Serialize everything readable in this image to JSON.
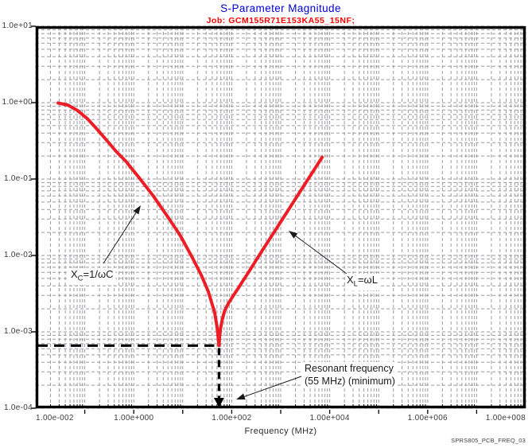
{
  "title": "S-Parameter Magnitude",
  "job": "Job: GCM155R71E153KA55_15NF;",
  "watermark": "SPRS805_PCB_FREQ_03",
  "colors": {
    "title": "#0000cd",
    "job": "#ff0000",
    "curve": "#ee1c25",
    "grid": "#9a9aa0",
    "axis": "#000000",
    "guide": "#000000"
  },
  "chart_data": {
    "type": "line",
    "title": "S-Parameter Magnitude",
    "subtitle": "Job: GCM155R71E153KA55_15NF;",
    "xlabel": "Frequency (MHz)",
    "ylabel": "",
    "x_scale": "log",
    "y_scale": "log",
    "xlim": [
      0.01,
      100000000
    ],
    "ylim": [
      0.0001,
      10
    ],
    "grid": "dashed-log-minor",
    "x_ticks": [
      {
        "label": "1.00e-002",
        "decade": -2
      },
      {
        "label": "1.00e+000",
        "decade": 0
      },
      {
        "label": "1.00e+002",
        "decade": 2
      },
      {
        "label": "1.00e+004",
        "decade": 4
      },
      {
        "label": "1.00e+006",
        "decade": 6
      },
      {
        "label": "1.00e+008",
        "decade": 8
      }
    ],
    "y_ticks": [
      {
        "label": "1.0e+01",
        "decade": 1
      },
      {
        "label": "1.0e+00",
        "decade": 0
      },
      {
        "label": "1.0e-01",
        "decade": -1
      },
      {
        "label": "1.0e-02",
        "decade": -2
      },
      {
        "label": "1.0e-03",
        "decade": -3
      },
      {
        "label": "1.0e-04",
        "decade": -4
      }
    ],
    "series": [
      {
        "name": "s-parameter-magnitude",
        "color": "#ee1c25",
        "points": [
          [
            0.0285,
            0.99
          ],
          [
            0.045,
            0.93
          ],
          [
            0.071,
            0.79
          ],
          [
            0.112,
            0.62
          ],
          [
            0.178,
            0.45
          ],
          [
            0.282,
            0.32
          ],
          [
            0.447,
            0.226
          ],
          [
            0.708,
            0.168
          ],
          [
            0.824,
            0.148
          ],
          [
            1.26,
            0.106
          ],
          [
            2.51,
            0.06
          ],
          [
            5.01,
            0.0316
          ],
          [
            8.91,
            0.0182
          ],
          [
            15.8,
            0.0093
          ],
          [
            24.0,
            0.0055
          ],
          [
            33.1,
            0.0034
          ],
          [
            44.7,
            0.0018
          ],
          [
            50.1,
            0.00117
          ],
          [
            55,
            0.00066
          ],
          [
            56.5,
            0.00085
          ],
          [
            59,
            0.0011
          ],
          [
            64,
            0.00145
          ],
          [
            72,
            0.0019
          ],
          [
            85,
            0.00235
          ],
          [
            105,
            0.0029
          ],
          [
            135,
            0.0037
          ],
          [
            175,
            0.0048
          ],
          [
            230,
            0.0063
          ],
          [
            320,
            0.0088
          ],
          [
            450,
            0.0124
          ],
          [
            650,
            0.0179
          ],
          [
            950,
            0.0261
          ],
          [
            1400,
            0.0385
          ],
          [
            2100,
            0.0578
          ],
          [
            3200,
            0.088
          ],
          [
            4800,
            0.132
          ],
          [
            7000,
            0.193
          ]
        ]
      }
    ],
    "resonance": {
      "freq_mhz": 55,
      "magnitude": 0.00066,
      "label_line1": "Resonant frequency",
      "label_line2": "(55 MHz) (minimum)"
    },
    "annotations": {
      "xc": {
        "base": "X",
        "sub": "C",
        "rest": "=1/ωC"
      },
      "xl": {
        "base": "X",
        "sub": "L",
        "rest": "=ωL"
      }
    }
  }
}
